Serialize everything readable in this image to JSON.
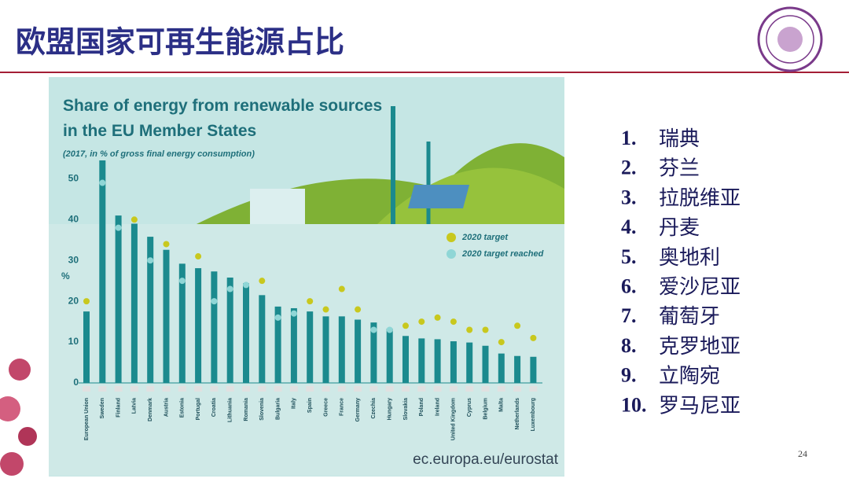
{
  "slide": {
    "title": "欧盟国家可再生能源占比",
    "list": [
      {
        "num": "1.",
        "name": "瑞典"
      },
      {
        "num": "2.",
        "name": "芬兰"
      },
      {
        "num": "3.",
        "name": "拉脱维亚"
      },
      {
        "num": "4.",
        "name": "丹麦"
      },
      {
        "num": "5.",
        "name": "奥地利"
      },
      {
        "num": "6.",
        "name": "爱沙尼亚"
      },
      {
        "num": "7.",
        "name": "葡萄牙"
      },
      {
        "num": "8.",
        "name": "克罗地亚"
      },
      {
        "num": "9.",
        "name": "立陶宛"
      },
      {
        "num": "10.",
        "name": "罗马尼亚"
      }
    ],
    "page_number": "24"
  },
  "chart_data": {
    "type": "bar",
    "title": "Share of energy from renewable sources in the EU Member States",
    "subtitle": "(2017, in % of gross final energy consumption)",
    "y_label": "%",
    "source": "ec.europa.eu/eurostat",
    "categories": [
      "European Union",
      "Sweden",
      "Finland",
      "Latvia",
      "Denmark",
      "Austria",
      "Estonia",
      "Portugal",
      "Croatia",
      "Lithuania",
      "Romania",
      "Slovenia",
      "Bulgaria",
      "Italy",
      "Spain",
      "Greece",
      "France",
      "Germany",
      "Czechia",
      "Hungary",
      "Slovakia",
      "Poland",
      "Ireland",
      "United Kingdom",
      "Cyprus",
      "Belgium",
      "Malta",
      "Netherlands",
      "Luxembourg"
    ],
    "values": [
      17.5,
      54.5,
      41.0,
      39.0,
      35.8,
      32.6,
      29.2,
      28.1,
      27.3,
      25.8,
      24.4,
      21.5,
      18.7,
      18.3,
      17.5,
      16.3,
      16.3,
      15.5,
      14.8,
      13.3,
      11.5,
      10.9,
      10.7,
      10.2,
      9.9,
      9.1,
      7.2,
      6.6,
      6.4
    ],
    "color": "#1b8a8e",
    "series": [
      {
        "name": "2020 target",
        "color": "#c8c81e",
        "values": [
          20,
          null,
          null,
          40,
          null,
          34,
          null,
          31,
          null,
          null,
          null,
          25,
          null,
          null,
          20,
          18,
          23,
          18,
          null,
          null,
          14,
          15,
          16,
          15,
          13,
          13,
          10,
          14,
          11
        ]
      },
      {
        "name": "2020 target reached",
        "color": "#8fd6d6",
        "values": [
          null,
          49,
          38,
          null,
          30,
          null,
          25,
          null,
          20,
          23,
          24,
          null,
          16,
          17,
          null,
          null,
          null,
          null,
          13,
          13,
          null,
          null,
          null,
          null,
          null,
          null,
          null,
          null,
          null
        ]
      }
    ],
    "ylim": [
      0,
      57
    ],
    "yticks": [
      0,
      10,
      20,
      30,
      40,
      50
    ],
    "grid": false
  }
}
